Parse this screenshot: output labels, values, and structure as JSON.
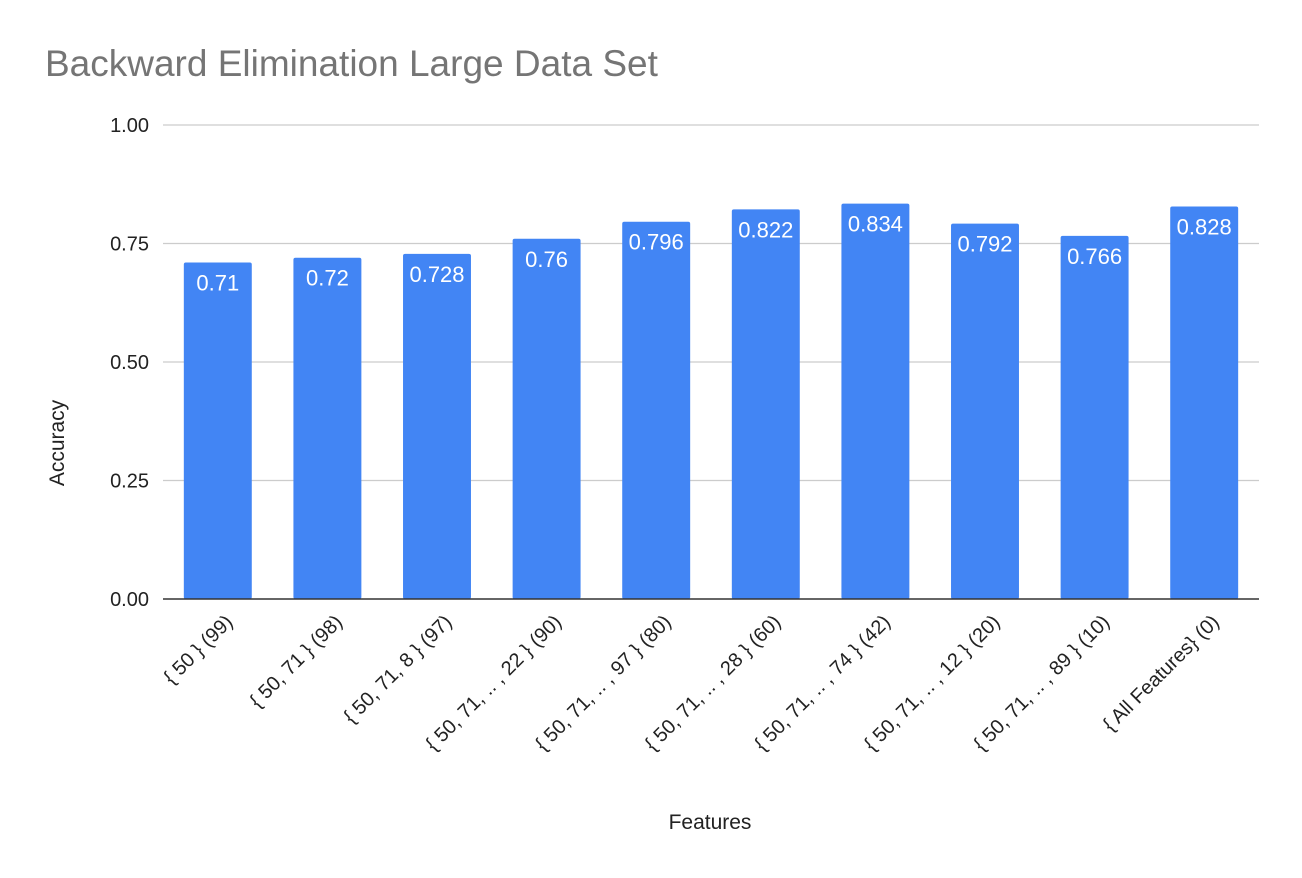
{
  "chart_data": {
    "type": "bar",
    "title": "Backward Elimination Large Data Set",
    "xlabel": "Features",
    "ylabel": "Accuracy",
    "ylim": [
      0,
      1
    ],
    "yticks": [
      "0.00",
      "0.25",
      "0.50",
      "0.75",
      "1.00"
    ],
    "grid": true,
    "legend": "none",
    "bar_color": "#4285f4",
    "categories": [
      "{ 50 } (99)",
      "{ 50, 71 } (98)",
      "{ 50, 71, 8 } (97)",
      "{ 50, 71, .. , 22 } (90)",
      "{ 50, 71, .. , 97 } (80)",
      "{ 50, 71, .. , 28 } (60)",
      "{ 50, 71, .. , 74 } (42)",
      "{ 50, 71, .. , 12 } (20)",
      "{ 50, 71, .. , 89 } (10)",
      "{ All Features} (0)"
    ],
    "values": [
      0.71,
      0.72,
      0.728,
      0.76,
      0.796,
      0.822,
      0.834,
      0.792,
      0.766,
      0.828
    ],
    "data_labels": [
      "0.71",
      "0.72",
      "0.728",
      "0.76",
      "0.796",
      "0.822",
      "0.834",
      "0.792",
      "0.766",
      "0.828"
    ]
  }
}
